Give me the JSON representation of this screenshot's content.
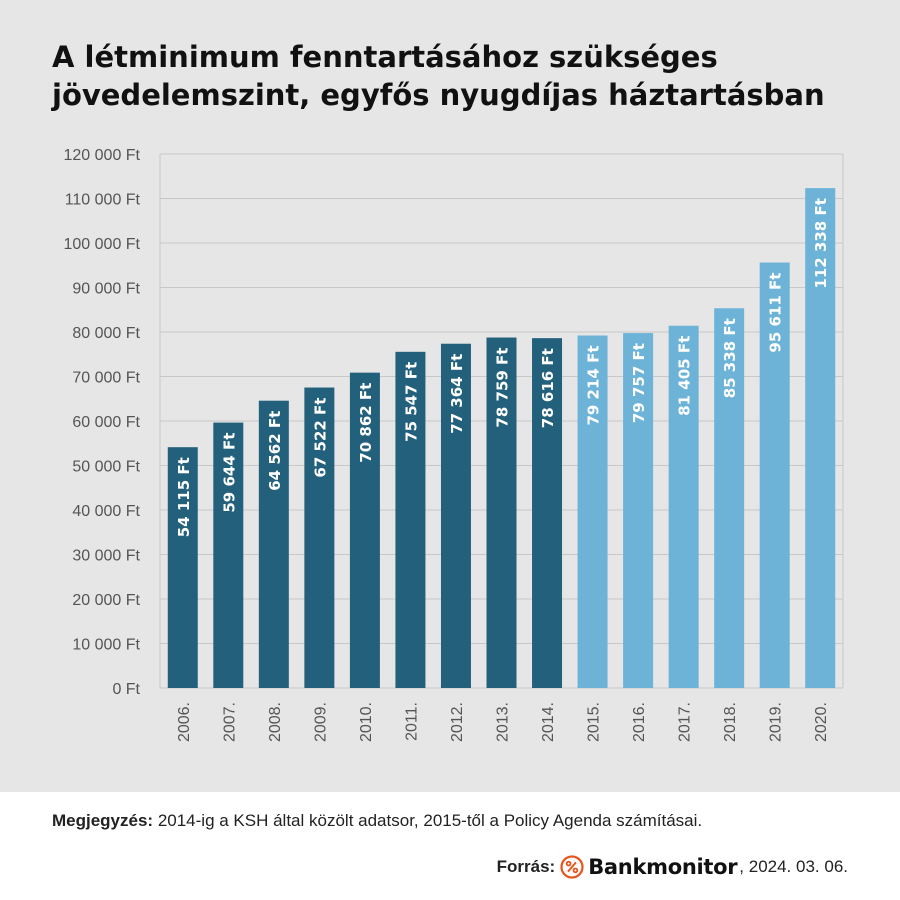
{
  "title_lines": [
    "A létminimum fenntartásához szükséges",
    "jövedelemszint, egyfős nyugdíjas háztartásban"
  ],
  "note": {
    "label": "Megjegyzés:",
    "text": " 2014-ig a KSH által közölt adatsor, 2015-től a Policy Agenda számításai."
  },
  "source": {
    "label": "Forrás:",
    "brand": "Bankmonitor",
    "date": ", 2024. 03. 06.",
    "brand_icon": "percent-circle-icon",
    "brand_color": "#e8541e"
  },
  "colors": {
    "dark_bar": "#23607c",
    "light_bar": "#6db3d8",
    "grid": "#c8c8c8",
    "axis_text": "#555555"
  },
  "chart_data": {
    "type": "bar",
    "categories": [
      "2006.",
      "2007.",
      "2008.",
      "2009.",
      "2010.",
      "2011.",
      "2012.",
      "2013.",
      "2014.",
      "2015.",
      "2016.",
      "2017.",
      "2018.",
      "2019.",
      "2020."
    ],
    "values": [
      54115,
      59644,
      64562,
      67522,
      70862,
      75547,
      77364,
      78759,
      78616,
      79214,
      79757,
      81405,
      85338,
      95611,
      112338
    ],
    "data_labels": [
      "54 115 Ft",
      "59 644 Ft",
      "64 562 Ft",
      "67 522 Ft",
      "70 862 Ft",
      "75 547 Ft",
      "77 364 Ft",
      "78 759 Ft",
      "78 616 Ft",
      "79 214 Ft",
      "79 757 Ft",
      "81 405 Ft",
      "85 338 Ft",
      "95 611 Ft",
      "112 338 Ft"
    ],
    "bar_color_groups": [
      "dark",
      "dark",
      "dark",
      "dark",
      "dark",
      "dark",
      "dark",
      "dark",
      "dark",
      "light",
      "light",
      "light",
      "light",
      "light",
      "light"
    ],
    "y_ticks": [
      0,
      10000,
      20000,
      30000,
      40000,
      50000,
      60000,
      70000,
      80000,
      90000,
      100000,
      110000,
      120000
    ],
    "y_tick_labels": [
      "0 Ft",
      "10 000 Ft",
      "20 000 Ft",
      "30 000 Ft",
      "40 000 Ft",
      "50 000 Ft",
      "60 000 Ft",
      "70 000 Ft",
      "80 000 Ft",
      "90 000 Ft",
      "100 000 Ft",
      "110 000 Ft",
      "120 000 Ft"
    ],
    "ylim": [
      0,
      120000
    ],
    "grid": true,
    "xlabel": "",
    "ylabel": ""
  }
}
